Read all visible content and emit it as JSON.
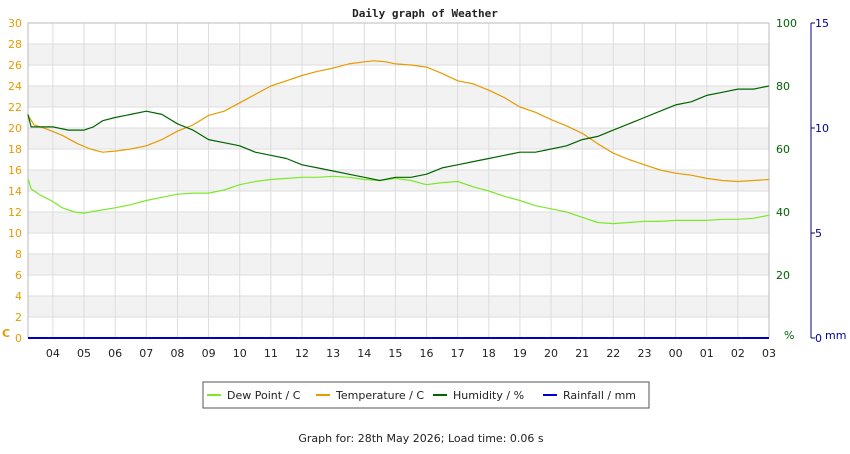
{
  "chart_data": {
    "type": "line",
    "title": "Daily graph of Weather",
    "x_ticks": [
      "04",
      "05",
      "06",
      "07",
      "08",
      "09",
      "10",
      "11",
      "12",
      "13",
      "14",
      "15",
      "16",
      "17",
      "18",
      "19",
      "20",
      "21",
      "22",
      "23",
      "00",
      "01",
      "02",
      "03"
    ],
    "x_range_hours": [
      3.2,
      27.0
    ],
    "axes": {
      "left": {
        "unit_label": "C",
        "min": 0,
        "max": 30,
        "step": 2,
        "color": "#e69b00"
      },
      "right1": {
        "unit_label": "%",
        "min": 0,
        "max": 100,
        "step": 20,
        "color": "#006400"
      },
      "right2": {
        "unit_label": "mm",
        "min": 0,
        "max": 15,
        "step": 5,
        "color": "#00008b"
      }
    },
    "grid": true,
    "legend_position": "bottom",
    "series": [
      {
        "name": "Dew Point / C",
        "axis": "left",
        "color": "#7ce82a",
        "points": [
          [
            3.2,
            15.2
          ],
          [
            3.3,
            14.2
          ],
          [
            3.6,
            13.6
          ],
          [
            4.0,
            13.0
          ],
          [
            4.3,
            12.4
          ],
          [
            4.7,
            12.0
          ],
          [
            5.0,
            11.9
          ],
          [
            5.4,
            12.1
          ],
          [
            6.0,
            12.4
          ],
          [
            6.5,
            12.7
          ],
          [
            7.0,
            13.1
          ],
          [
            7.5,
            13.4
          ],
          [
            8.0,
            13.7
          ],
          [
            8.5,
            13.8
          ],
          [
            9.0,
            13.8
          ],
          [
            9.5,
            14.1
          ],
          [
            10.0,
            14.6
          ],
          [
            10.5,
            14.9
          ],
          [
            11.0,
            15.1
          ],
          [
            11.5,
            15.2
          ],
          [
            12.0,
            15.3
          ],
          [
            12.5,
            15.3
          ],
          [
            13.0,
            15.4
          ],
          [
            13.5,
            15.3
          ],
          [
            14.0,
            15.1
          ],
          [
            14.5,
            15.0
          ],
          [
            15.0,
            15.2
          ],
          [
            15.5,
            15.0
          ],
          [
            16.0,
            14.6
          ],
          [
            16.5,
            14.8
          ],
          [
            17.0,
            14.9
          ],
          [
            17.5,
            14.4
          ],
          [
            18.0,
            14.0
          ],
          [
            18.5,
            13.5
          ],
          [
            19.0,
            13.1
          ],
          [
            19.5,
            12.6
          ],
          [
            20.0,
            12.3
          ],
          [
            20.5,
            12.0
          ],
          [
            21.0,
            11.5
          ],
          [
            21.5,
            11.0
          ],
          [
            22.0,
            10.9
          ],
          [
            22.5,
            11.0
          ],
          [
            23.0,
            11.1
          ],
          [
            23.5,
            11.1
          ],
          [
            24.0,
            11.2
          ],
          [
            24.5,
            11.2
          ],
          [
            25.0,
            11.2
          ],
          [
            25.5,
            11.3
          ],
          [
            26.0,
            11.3
          ],
          [
            26.5,
            11.4
          ],
          [
            27.0,
            11.7
          ]
        ]
      },
      {
        "name": "Temperature / C",
        "axis": "left",
        "color": "#e69b00",
        "points": [
          [
            3.2,
            21.2
          ],
          [
            3.4,
            20.3
          ],
          [
            3.8,
            19.9
          ],
          [
            4.3,
            19.3
          ],
          [
            4.8,
            18.5
          ],
          [
            5.2,
            18.0
          ],
          [
            5.6,
            17.7
          ],
          [
            6.0,
            17.8
          ],
          [
            6.5,
            18.0
          ],
          [
            7.0,
            18.3
          ],
          [
            7.5,
            18.9
          ],
          [
            8.0,
            19.7
          ],
          [
            8.5,
            20.3
          ],
          [
            9.0,
            21.2
          ],
          [
            9.5,
            21.6
          ],
          [
            10.0,
            22.4
          ],
          [
            10.5,
            23.2
          ],
          [
            11.0,
            24.0
          ],
          [
            11.5,
            24.5
          ],
          [
            12.0,
            25.0
          ],
          [
            12.5,
            25.4
          ],
          [
            13.0,
            25.7
          ],
          [
            13.5,
            26.1
          ],
          [
            14.0,
            26.3
          ],
          [
            14.3,
            26.4
          ],
          [
            14.7,
            26.3
          ],
          [
            15.0,
            26.1
          ],
          [
            15.5,
            26.0
          ],
          [
            16.0,
            25.8
          ],
          [
            16.5,
            25.2
          ],
          [
            17.0,
            24.5
          ],
          [
            17.5,
            24.2
          ],
          [
            18.0,
            23.6
          ],
          [
            18.5,
            22.9
          ],
          [
            19.0,
            22.0
          ],
          [
            19.5,
            21.5
          ],
          [
            20.0,
            20.8
          ],
          [
            20.5,
            20.2
          ],
          [
            21.0,
            19.5
          ],
          [
            21.5,
            18.5
          ],
          [
            22.0,
            17.6
          ],
          [
            22.5,
            17.0
          ],
          [
            23.0,
            16.5
          ],
          [
            23.5,
            16.0
          ],
          [
            24.0,
            15.7
          ],
          [
            24.5,
            15.5
          ],
          [
            25.0,
            15.2
          ],
          [
            25.5,
            15.0
          ],
          [
            26.0,
            14.9
          ],
          [
            26.5,
            15.0
          ],
          [
            27.0,
            15.1
          ]
        ]
      },
      {
        "name": "Humidity / %",
        "axis": "right1",
        "color": "#006400",
        "points": [
          [
            3.2,
            71
          ],
          [
            3.3,
            67
          ],
          [
            4.0,
            67
          ],
          [
            4.5,
            66
          ],
          [
            5.0,
            66
          ],
          [
            5.3,
            67
          ],
          [
            5.6,
            69
          ],
          [
            6.0,
            70
          ],
          [
            6.5,
            71
          ],
          [
            7.0,
            72
          ],
          [
            7.5,
            71
          ],
          [
            8.0,
            68
          ],
          [
            8.5,
            66
          ],
          [
            9.0,
            63
          ],
          [
            9.5,
            62
          ],
          [
            10.0,
            61
          ],
          [
            10.5,
            59
          ],
          [
            11.0,
            58
          ],
          [
            11.5,
            57
          ],
          [
            12.0,
            55
          ],
          [
            12.5,
            54
          ],
          [
            13.0,
            53
          ],
          [
            13.5,
            52
          ],
          [
            14.0,
            51
          ],
          [
            14.5,
            50
          ],
          [
            15.0,
            51
          ],
          [
            15.5,
            51
          ],
          [
            16.0,
            52
          ],
          [
            16.5,
            54
          ],
          [
            17.0,
            55
          ],
          [
            17.5,
            56
          ],
          [
            18.0,
            57
          ],
          [
            18.5,
            58
          ],
          [
            19.0,
            59
          ],
          [
            19.5,
            59
          ],
          [
            20.0,
            60
          ],
          [
            20.5,
            61
          ],
          [
            21.0,
            63
          ],
          [
            21.5,
            64
          ],
          [
            22.0,
            66
          ],
          [
            22.5,
            68
          ],
          [
            23.0,
            70
          ],
          [
            23.5,
            72
          ],
          [
            24.0,
            74
          ],
          [
            24.5,
            75
          ],
          [
            25.0,
            77
          ],
          [
            25.5,
            78
          ],
          [
            26.0,
            79
          ],
          [
            26.5,
            79
          ],
          [
            27.0,
            80
          ]
        ]
      },
      {
        "name": "Rainfall / mm",
        "axis": "right2",
        "color": "#0000cc",
        "points": [
          [
            3.2,
            0
          ],
          [
            27.0,
            0
          ]
        ]
      }
    ]
  },
  "footer": "Graph for: 28th May 2026; Load time: 0.06 s"
}
